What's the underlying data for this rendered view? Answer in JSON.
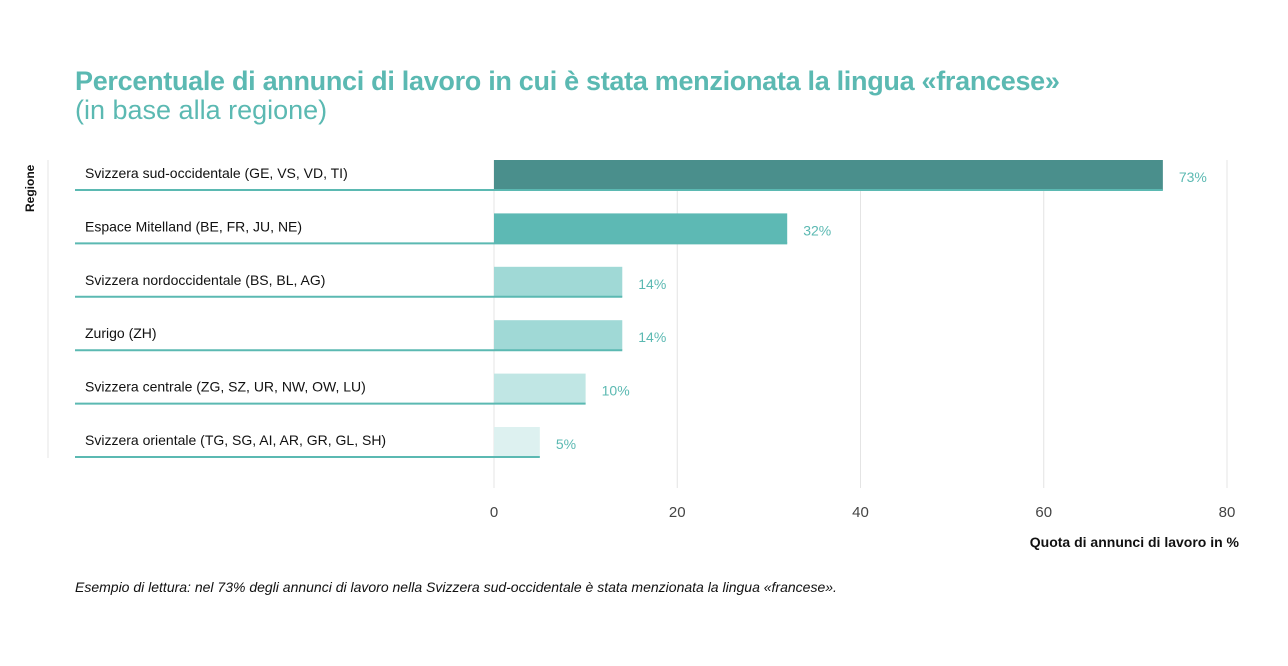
{
  "chart_data": {
    "type": "bar",
    "orientation": "horizontal",
    "title": "Percentuale di annunci di lavoro in cui è stata menzionata la lingua «francese»",
    "subtitle": "(in base alla regione)",
    "xlabel": "Quota di annunci di lavoro in %",
    "ylabel": "Regione",
    "xlim": [
      0,
      80
    ],
    "xticks": [
      "0",
      "20",
      "40",
      "60",
      "80"
    ],
    "grid": true,
    "categories": [
      "Svizzera sud-occidentale (GE, VS, VD, TI)",
      "Espace Mitelland (BE, FR, JU, NE)",
      "Svizzera nordoccidentale (BS, BL, AG)",
      "Zurigo (ZH)",
      "Svizzera centrale (ZG, SZ, UR, NW, OW, LU)",
      "Svizzera orientale (TG, SG, AI, AR, GR, GL, SH)"
    ],
    "values": [
      73,
      32,
      14,
      14,
      10,
      5
    ],
    "data_labels": [
      "73%",
      "32%",
      "14%",
      "14%",
      "10%",
      "5%"
    ],
    "colors": [
      "#4a8f8c",
      "#5db9b4",
      "#a0d9d6",
      "#a0d9d6",
      "#c0e6e4",
      "#ddf1f0"
    ],
    "underline_color": "#5bb9b2",
    "note": "Esempio di lettura: nel 73% degli annunci di lavoro nella Svizzera sud-occidentale è stata menzionata la lingua «francese»."
  }
}
